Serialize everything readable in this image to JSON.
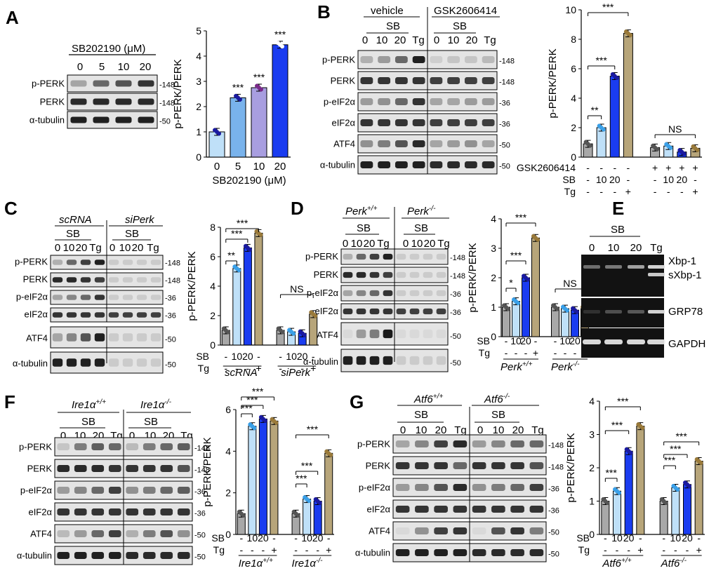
{
  "colors": {
    "c0": "#a8a8a8",
    "c10": "#bfe0f8",
    "c20": "#1a3cf0",
    "tg": "#b7a57a",
    "c5": "#79b3ec",
    "c10a": "#a89ee0",
    "dot0": "#555555",
    "dot10": "#3aa0e8",
    "dot20": "#1a1aa0",
    "dotTg": "#9a7a3a",
    "band": "#151515",
    "blotBg": "#e4e4e4"
  },
  "panels": {
    "A": {
      "letter": "A",
      "treatment": "SB202190 (μM)",
      "conc": [
        "0",
        "5",
        "10",
        "20"
      ],
      "rows": [
        "p-PERK",
        "PERK",
        "α-tubulin"
      ],
      "mw": [
        "148",
        "148",
        "50"
      ],
      "ylabel": "p-PERK/PERK",
      "xlabel": "SB202190 (μM)",
      "yticks": [
        "0",
        "1",
        "2",
        "3",
        "4",
        "5"
      ],
      "xticks": [
        "0",
        "5",
        "10",
        "20"
      ],
      "sig": [
        "***",
        "***",
        "***"
      ]
    },
    "B": {
      "letter": "B",
      "groups": [
        "vehicle",
        "GSK2606414"
      ],
      "sb": "SB",
      "lanes": [
        "0",
        "10",
        "20",
        "Tg",
        "0",
        "10",
        "20",
        "Tg"
      ],
      "rows": [
        "p-PERK",
        "PERK",
        "p-eIF2α",
        "eIF2α",
        "ATF4",
        "α-tubulin"
      ],
      "mw": [
        "148",
        "148",
        "36",
        "36",
        "50",
        "50"
      ],
      "ylabel": "p-PERK/PERK",
      "yticks": [
        "0",
        "2",
        "4",
        "6",
        "8",
        "10"
      ],
      "sig": [
        "***",
        "***",
        "**"
      ],
      "ns": "NS",
      "trow": [
        [
          "GSK2606414",
          "-",
          "-",
          "-",
          "-",
          "+",
          "+",
          "+",
          "+"
        ],
        [
          "SB",
          "-",
          "10",
          "20",
          "-",
          "-",
          "10",
          "20",
          "-"
        ],
        [
          "Tg",
          "-",
          "-",
          "-",
          "+",
          "-",
          "-",
          "-",
          "+"
        ]
      ]
    },
    "C": {
      "letter": "C",
      "groups": [
        "scRNA",
        "siPerk"
      ],
      "sb": "SB",
      "lanes": [
        "0",
        "10",
        "20",
        "Tg",
        "0",
        "10",
        "20",
        "Tg"
      ],
      "rows": [
        "p-PERK",
        "PERK",
        "p-eIF2α",
        "eIF2α",
        "ATF4",
        "α-tubulin"
      ],
      "mw": [
        "148",
        "148",
        "36",
        "36",
        "50",
        "50"
      ],
      "ylabel": "p-PERK/PERK",
      "yticks": [
        "0",
        "2",
        "4",
        "6",
        "8"
      ],
      "sig": [
        "***",
        "***",
        "**"
      ],
      "ns": "NS",
      "sb_row": [
        "SB",
        "-",
        "10",
        "20",
        "-",
        "-",
        "10",
        "20",
        "-"
      ],
      "tg_row": [
        "Tg",
        "-",
        "-",
        "-",
        "+",
        "-",
        "-",
        "-",
        "+"
      ],
      "gl": [
        "scRNA",
        "siPerk"
      ]
    },
    "D": {
      "letter": "D",
      "groups": [
        "Perk",
        "Perk"
      ],
      "gsup": [
        "+/+",
        "-/-"
      ],
      "sb": "SB",
      "lanes": [
        "0",
        "10",
        "20",
        "Tg",
        "0",
        "10",
        "20",
        "Tg"
      ],
      "rows": [
        "p-PERK",
        "PERK",
        "p-eIF2α",
        "eIF2α",
        "ATF4",
        "α-tubulin"
      ],
      "mw": [
        "148",
        "148",
        "36",
        "36",
        "50",
        "50"
      ],
      "ylabel": "p-PERK/PERK",
      "yticks": [
        "0",
        "1",
        "2",
        "3",
        "4"
      ],
      "sig": [
        "***",
        "***",
        "*"
      ],
      "ns": "NS",
      "sb_row": [
        "SB",
        "-",
        "10",
        "20",
        "-",
        "-",
        "10",
        "20",
        "-"
      ],
      "tg_row": [
        "Tg",
        "-",
        "-",
        "-",
        "+",
        "-",
        "-",
        "-",
        "+"
      ],
      "gl": [
        "Perk",
        "Perk"
      ],
      "glsup": [
        "+/+",
        "-/-"
      ]
    },
    "E": {
      "letter": "E",
      "sb": "SB",
      "lanes": [
        "0",
        "10",
        "20",
        "Tg"
      ],
      "labels": [
        "Xbp-1",
        "sXbp-1",
        "GRP78",
        "GAPDH"
      ]
    },
    "F": {
      "letter": "F",
      "groups": [
        "Ire1α",
        "Ire1α"
      ],
      "gsup": [
        "+/+",
        "-/-"
      ],
      "sb": "SB",
      "lanes": [
        "0",
        "10",
        "20",
        "Tg",
        "0",
        "10",
        "20",
        "Tg"
      ],
      "rows": [
        "p-PERK",
        "PERK",
        "p-eIF2α",
        "eIF2α",
        "ATF4",
        "α-tubulin"
      ],
      "mw": [
        "148",
        "148",
        "36",
        "36",
        "50",
        "50"
      ],
      "ylabel": "p-PERK/PERK",
      "yticks": [
        "0",
        "2",
        "4",
        "6"
      ],
      "sig": [
        "***",
        "***",
        "***",
        "***",
        "***",
        "***"
      ],
      "sb_row": [
        "SB",
        "-",
        "10",
        "20",
        "-",
        "-",
        "10",
        "20",
        "-"
      ],
      "tg_row": [
        "Tg",
        "-",
        "-",
        "-",
        "+",
        "-",
        "-",
        "-",
        "+"
      ],
      "gl": [
        "Ire1α",
        "Ire1α"
      ],
      "glsup": [
        "+/+",
        "-/-"
      ]
    },
    "G": {
      "letter": "G",
      "groups": [
        "Atf6",
        "Atf6"
      ],
      "gsup": [
        "+/+",
        "-/-"
      ],
      "sb": "SB",
      "lanes": [
        "0",
        "10",
        "20",
        "Tg",
        "0",
        "10",
        "20",
        "Tg"
      ],
      "rows": [
        "p-PERK",
        "PERK",
        "p-eIF2α",
        "eIF2α",
        "ATF4",
        "α-tubulin"
      ],
      "mw": [
        "148",
        "148",
        "36",
        "36",
        "50",
        "50"
      ],
      "ylabel": "p-PERK/PERK",
      "yticks": [
        "0",
        "1",
        "2",
        "3",
        "4"
      ],
      "sig": [
        "***",
        "***",
        "***",
        "***",
        "***",
        "***"
      ],
      "sb_row": [
        "SB",
        "-",
        "10",
        "20",
        "-",
        "-",
        "10",
        "20",
        "-"
      ],
      "tg_row": [
        "Tg",
        "-",
        "-",
        "-",
        "+",
        "-",
        "-",
        "-",
        "+"
      ],
      "gl": [
        "Atf6",
        "Atf6"
      ],
      "glsup": [
        "+/+",
        "-/-"
      ]
    }
  },
  "chart_data": [
    {
      "panel": "A",
      "type": "bar",
      "categories": [
        "0",
        "5",
        "10",
        "20"
      ],
      "values": [
        1.0,
        2.35,
        2.75,
        4.45
      ],
      "ylim": [
        0,
        5
      ],
      "ylabel": "p-PERK/PERK",
      "xlabel": "SB202190 (μM)"
    },
    {
      "panel": "B",
      "type": "bar",
      "categories": [
        "-/-/-",
        "-/10/-",
        "-/20/-",
        "-/-/+",
        "+/-/-",
        "+/10/-",
        "+/20/-",
        "+/-/+"
      ],
      "values": [
        0.9,
        2.0,
        5.5,
        8.4,
        0.65,
        0.75,
        0.35,
        0.6
      ],
      "ylim": [
        0,
        10
      ],
      "ylabel": "p-PERK/PERK"
    },
    {
      "panel": "C",
      "type": "bar",
      "categories": [
        "scRNA -",
        "scRNA 10",
        "scRNA 20",
        "scRNA Tg",
        "siPerk -",
        "siPerk 10",
        "siPerk 20",
        "siPerk Tg"
      ],
      "values": [
        1.0,
        5.2,
        6.6,
        7.6,
        1.0,
        0.9,
        0.8,
        2.1
      ],
      "ylim": [
        0,
        8
      ],
      "ylabel": "p-PERK/PERK"
    },
    {
      "panel": "D",
      "type": "bar",
      "categories": [
        "Perk+/+ -",
        "Perk+/+ 10",
        "Perk+/+ 20",
        "Perk+/+ Tg",
        "Perk-/- -",
        "Perk-/- 10",
        "Perk-/- 20",
        "Perk-/- Tg"
      ],
      "values": [
        1.0,
        1.2,
        2.0,
        3.35,
        1.0,
        0.95,
        0.9,
        0.95
      ],
      "ylim": [
        0,
        4
      ],
      "ylabel": "p-PERK/PERK"
    },
    {
      "panel": "F",
      "type": "bar",
      "categories": [
        "Ire1α+/+ -",
        "Ire1α+/+ 10",
        "Ire1α+/+ 20",
        "Ire1α+/+ Tg",
        "Ire1α-/- -",
        "Ire1α-/- 10",
        "Ire1α-/- 20",
        "Ire1α-/- Tg"
      ],
      "values": [
        1.0,
        5.2,
        5.55,
        5.45,
        1.0,
        1.7,
        1.6,
        3.9
      ],
      "ylim": [
        0,
        6
      ],
      "ylabel": "p-PERK/PERK"
    },
    {
      "panel": "G",
      "type": "bar",
      "categories": [
        "Atf6+/+ -",
        "Atf6+/+ 10",
        "Atf6+/+ 20",
        "Atf6+/+ Tg",
        "Atf6-/- -",
        "Atf6-/- 10",
        "Atf6-/- 20",
        "Atf6-/- Tg"
      ],
      "values": [
        1.0,
        1.3,
        2.5,
        3.25,
        1.0,
        1.4,
        1.5,
        2.2
      ],
      "ylim": [
        0,
        4
      ],
      "ylabel": "p-PERK/PERK"
    }
  ]
}
